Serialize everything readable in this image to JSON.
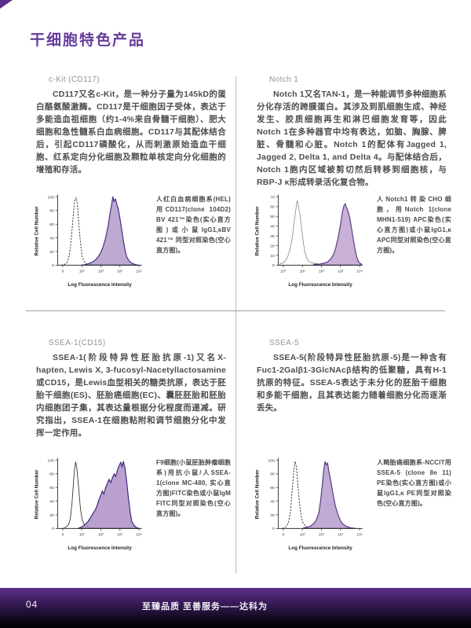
{
  "page": {
    "title": "干细胞特色产品",
    "colors": {
      "accent_purple": "#663d9b",
      "histogram_fill": "#b59dcb",
      "histogram_stroke": "#4b2c80",
      "footer_top": "#5e2e8a",
      "footer_bottom": "#000000"
    }
  },
  "sections": [
    {
      "heading": "c-Kit (CD117)",
      "body": "CD117又名c-Kit，是一种分子量为145kD的蛋白酪氨酸激酶。CD117是干细胞因子受体，表达于多能造血祖细胞（约1-4%来自骨髓干细胞）、肥大细胞和急性髓系白血病细胞。CD117与其配体结合后，引起CD117磷酸化，从而刺激原始造血干细胞、红系定向分化细胞及颗粒单核定向分化细胞的增殖和存活。",
      "caption": "人红白血病细胞系(HEL)用CD117(clone 104D2) BV 421™染色(实心直方图)或小鼠IgG1,κBV 421™ 同型对照染色(空心直方图)。"
    },
    {
      "heading": "Notch 1",
      "body": "Notch 1又名TAN-1，是一种能调节多种细胞系分化存活的跨膜蛋白。其涉及到肌细胞生成、神经发生、胶质细胞再生和淋巴细胞发育等，因此Notch 1在多种器官中均有表达，如脑、胸腺、脾脏、骨髓和心脏。Notch 1的配体有Jagged 1, Jagged 2, Delta 1, and Delta 4。与配体结合后，Notch 1胞内区域被剪切然后转移到细胞核，与RBP-J κ形成转录活化复合物。",
      "caption": "人Notch1转染CHO细胞，用Notch 1(clone MHN1-519) APC染色(实心直方图)或小鼠IgG1,κ APC同型对照染色(空心直方图)。"
    },
    {
      "heading": "SSEA-1(CD15)",
      "body": "SSEA-1(阶段特异性胚胎抗原-1)又名X-hapten, Lewis X, 3-fucosyl-Nacetyllactosamine或CD15，是Lewis血型相关的糖类抗原，表达于胚胎干细胞(ES)、胚胎癌细胞(EC)、囊胚胚胎和胚胎内细胞团子集，其表达量根据分化程度而递减。研究指出，SSEA-1在细胞粘附和调节细胞分化中发挥一定作用。",
      "caption": "F9细胞(小鼠胚胎肿瘤细胞系)用抗小鼠/人SSEA-1(clone MC-480, 实心直方图)FITC染色或小鼠IgM FITC同型对照染色(空心直方图)。"
    },
    {
      "heading": "SSEA-5",
      "body": "SSEA-5(阶段特异性胚胎抗原-5)是一种含有Fuc1-2Galβ1-3GlcNAcβ结构的低聚糖，具有H-1抗原的特征。SSEA-5表达于未分化的胚胎干细胞和多能干细胞，且其表达能力随着细胞分化而逐渐丢失。",
      "caption": "人畸胎癌细胞系-NCCIT用SSEA-5 (clone 8e 11) PE染色(实心直方图)或小鼠IgG1,κ PE同型对照染色(空心直方图)。"
    }
  ],
  "footer": {
    "page_number": "04",
    "slogan": "至臻品质 至善服务——达科为"
  },
  "chart_data": [
    {
      "type": "area",
      "title": "c-Kit (CD117) on HEL cells",
      "xlabel": "Log Fluorescence Intensity",
      "ylabel": "Relative Cell Number",
      "x_ticks": [
        "0",
        "10²",
        "10³",
        "10⁴",
        "10⁵"
      ],
      "y_ticks": [
        0,
        20,
        40,
        60,
        80,
        100
      ],
      "ylim": [
        0,
        100
      ],
      "series": [
        {
          "name": "mouse IgG1,κ BV 421 isotype control (open histogram)",
          "style": "dashed",
          "color": "#1a1a1a",
          "points": [
            [
              0.04,
              0
            ],
            [
              0.08,
              1
            ],
            [
              0.11,
              4
            ],
            [
              0.13,
              10
            ],
            [
              0.15,
              24
            ],
            [
              0.17,
              50
            ],
            [
              0.19,
              80
            ],
            [
              0.205,
              97
            ],
            [
              0.22,
              99
            ],
            [
              0.235,
              88
            ],
            [
              0.25,
              62
            ],
            [
              0.27,
              34
            ],
            [
              0.29,
              14
            ],
            [
              0.31,
              6
            ],
            [
              0.34,
              2
            ],
            [
              0.4,
              1
            ],
            [
              0.52,
              0
            ],
            [
              0.95,
              0
            ]
          ],
          "peak_x_tick": "10²",
          "peak_y": 99
        },
        {
          "name": "CD117 BV 421 stain (filled histogram)",
          "style": "filled",
          "fill": "#b59dcb",
          "stroke": "#4b2c80",
          "points": [
            [
              0.28,
              0
            ],
            [
              0.34,
              1
            ],
            [
              0.38,
              3
            ],
            [
              0.42,
              5
            ],
            [
              0.45,
              8
            ],
            [
              0.48,
              12
            ],
            [
              0.51,
              18
            ],
            [
              0.54,
              27
            ],
            [
              0.57,
              40
            ],
            [
              0.6,
              58
            ],
            [
              0.62,
              75
            ],
            [
              0.64,
              88
            ],
            [
              0.655,
              100
            ],
            [
              0.67,
              93
            ],
            [
              0.685,
              97
            ],
            [
              0.7,
              90
            ],
            [
              0.72,
              82
            ],
            [
              0.74,
              68
            ],
            [
              0.76,
              52
            ],
            [
              0.78,
              36
            ],
            [
              0.8,
              22
            ],
            [
              0.82,
              12
            ],
            [
              0.85,
              6
            ],
            [
              0.88,
              3
            ],
            [
              0.92,
              1
            ],
            [
              0.96,
              0
            ]
          ],
          "peak_x_tick": "10⁴",
          "peak_y": 100
        }
      ]
    },
    {
      "type": "area",
      "title": "Notch 1 on transfected CHO cells",
      "xlabel": "Log Fluorescence Intensity",
      "ylabel": "Relative Cell Number",
      "x_ticks": [
        "10⁰",
        "10¹",
        "10²",
        "10³",
        "10⁴"
      ],
      "y_ticks": [
        0,
        10,
        20,
        30,
        40,
        50,
        60,
        70
      ],
      "ylim": [
        0,
        70
      ],
      "series": [
        {
          "name": "mouse IgG1,κ APC isotype control (open histogram)",
          "style": "open",
          "color": "#8c8c8c",
          "points": [
            [
              0.01,
              1
            ],
            [
              0.05,
              2
            ],
            [
              0.08,
              4
            ],
            [
              0.11,
              8
            ],
            [
              0.14,
              16
            ],
            [
              0.17,
              30
            ],
            [
              0.19,
              45
            ],
            [
              0.21,
              58
            ],
            [
              0.225,
              66
            ],
            [
              0.24,
              61
            ],
            [
              0.26,
              50
            ],
            [
              0.28,
              36
            ],
            [
              0.3,
              22
            ],
            [
              0.32,
              12
            ],
            [
              0.35,
              5
            ],
            [
              0.38,
              3
            ],
            [
              0.42,
              2
            ],
            [
              0.5,
              1
            ],
            [
              0.6,
              1
            ]
          ],
          "peak_x_tick": "10¹",
          "peak_y": 66
        },
        {
          "name": "Notch 1 APC stain (filled histogram)",
          "style": "filled",
          "fill": "#c0a5d0",
          "stroke": "#5d3e85",
          "points": [
            [
              0.42,
              1
            ],
            [
              0.48,
              1
            ],
            [
              0.54,
              2
            ],
            [
              0.58,
              3
            ],
            [
              0.62,
              6
            ],
            [
              0.65,
              10
            ],
            [
              0.68,
              17
            ],
            [
              0.71,
              28
            ],
            [
              0.74,
              42
            ],
            [
              0.76,
              54
            ],
            [
              0.78,
              61
            ],
            [
              0.795,
              63
            ],
            [
              0.81,
              59
            ],
            [
              0.83,
              55
            ],
            [
              0.85,
              48
            ],
            [
              0.87,
              38
            ],
            [
              0.89,
              27
            ],
            [
              0.91,
              17
            ],
            [
              0.93,
              9
            ],
            [
              0.95,
              4
            ],
            [
              0.97,
              2
            ],
            [
              0.99,
              1
            ]
          ],
          "peak_x_tick": "10³",
          "peak_y": 63
        }
      ]
    },
    {
      "type": "area",
      "title": "SSEA-1 (CD15) on F9 cells",
      "xlabel": "Log Fluorescence Intensity",
      "ylabel": "Relative Cell Number",
      "x_ticks": [
        "0",
        "10²",
        "10³",
        "10⁴",
        "10⁵"
      ],
      "y_ticks": [
        0,
        20,
        40,
        60,
        80,
        100
      ],
      "ylim": [
        0,
        100
      ],
      "series": [
        {
          "name": "mouse IgM FITC isotype control (open histogram)",
          "style": "open",
          "color": "#2a2a2a",
          "points": [
            [
              0.06,
              0
            ],
            [
              0.1,
              2
            ],
            [
              0.13,
              6
            ],
            [
              0.15,
              14
            ],
            [
              0.17,
              36
            ],
            [
              0.19,
              70
            ],
            [
              0.205,
              92
            ],
            [
              0.215,
              97
            ],
            [
              0.23,
              86
            ],
            [
              0.25,
              58
            ],
            [
              0.27,
              30
            ],
            [
              0.29,
              13
            ],
            [
              0.32,
              5
            ],
            [
              0.36,
              2
            ],
            [
              0.44,
              0
            ],
            [
              0.95,
              0
            ]
          ],
          "peak_x_tick": "10²",
          "peak_y": 97
        },
        {
          "name": "SSEA-1 FITC stain (filled histogram)",
          "style": "filled",
          "fill": "#b193c8",
          "stroke": "#3f2a7d",
          "points": [
            [
              0.24,
              0
            ],
            [
              0.28,
              2
            ],
            [
              0.32,
              5
            ],
            [
              0.36,
              10
            ],
            [
              0.39,
              16
            ],
            [
              0.42,
              22
            ],
            [
              0.45,
              28
            ],
            [
              0.47,
              34
            ],
            [
              0.49,
              42
            ],
            [
              0.51,
              48
            ],
            [
              0.53,
              55
            ],
            [
              0.55,
              50
            ],
            [
              0.57,
              60
            ],
            [
              0.59,
              66
            ],
            [
              0.61,
              72
            ],
            [
              0.63,
              67
            ],
            [
              0.65,
              74
            ],
            [
              0.67,
              80
            ],
            [
              0.69,
              76
            ],
            [
              0.71,
              86
            ],
            [
              0.73,
              92
            ],
            [
              0.75,
              97
            ],
            [
              0.765,
              90
            ],
            [
              0.78,
              98
            ],
            [
              0.8,
              88
            ],
            [
              0.82,
              68
            ],
            [
              0.84,
              45
            ],
            [
              0.86,
              24
            ],
            [
              0.88,
              10
            ],
            [
              0.91,
              4
            ],
            [
              0.94,
              1
            ],
            [
              0.97,
              0
            ]
          ],
          "peak_x_tick": "10⁴",
          "peak_y": 98
        }
      ]
    },
    {
      "type": "area",
      "title": "SSEA-5 on NCCIT cells",
      "xlabel": "Log Fluorescence Intensity",
      "ylabel": "Relative Cell Number",
      "x_ticks": [
        "0",
        "10²",
        "10³",
        "10⁴",
        "10⁵"
      ],
      "y_ticks": [
        0,
        20,
        40,
        60,
        80,
        100
      ],
      "ylim": [
        0,
        100
      ],
      "series": [
        {
          "name": "mouse IgG1,κ PE isotype control (open histogram)",
          "style": "dashed",
          "color": "#1a1a1a",
          "points": [
            [
              0.05,
              0
            ],
            [
              0.09,
              2
            ],
            [
              0.12,
              8
            ],
            [
              0.145,
              24
            ],
            [
              0.165,
              55
            ],
            [
              0.185,
              85
            ],
            [
              0.2,
              98
            ],
            [
              0.215,
              92
            ],
            [
              0.23,
              68
            ],
            [
              0.25,
              40
            ],
            [
              0.27,
              20
            ],
            [
              0.29,
              9
            ],
            [
              0.32,
              4
            ],
            [
              0.36,
              1
            ],
            [
              0.44,
              1
            ],
            [
              0.55,
              0
            ],
            [
              0.95,
              0
            ]
          ],
          "peak_x_tick": "10²",
          "peak_y": 98
        },
        {
          "name": "SSEA-5 PE stain (filled histogram)",
          "style": "filled",
          "fill": "#b79fce",
          "stroke": "#5a3a88",
          "points": [
            [
              0.3,
              1
            ],
            [
              0.35,
              2
            ],
            [
              0.39,
              4
            ],
            [
              0.42,
              7
            ],
            [
              0.45,
              12
            ],
            [
              0.48,
              22
            ],
            [
              0.5,
              38
            ],
            [
              0.52,
              60
            ],
            [
              0.54,
              85
            ],
            [
              0.555,
              98
            ],
            [
              0.57,
              93
            ],
            [
              0.585,
              96
            ],
            [
              0.6,
              84
            ],
            [
              0.62,
              72
            ],
            [
              0.64,
              58
            ],
            [
              0.66,
              44
            ],
            [
              0.68,
              32
            ],
            [
              0.71,
              20
            ],
            [
              0.74,
              11
            ],
            [
              0.77,
              6
            ],
            [
              0.81,
              3
            ],
            [
              0.86,
              1
            ],
            [
              0.92,
              0
            ]
          ],
          "peak_x_tick": "10³",
          "peak_y": 98
        }
      ]
    }
  ]
}
